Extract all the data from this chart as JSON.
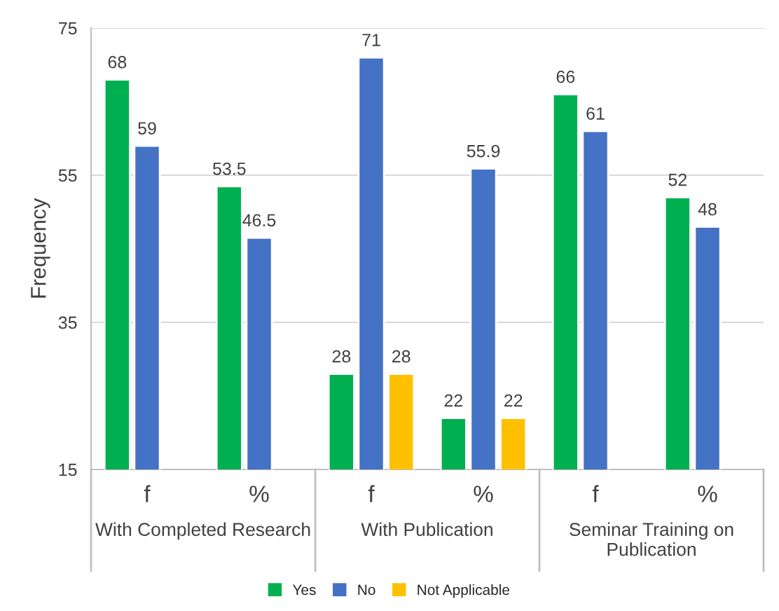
{
  "chart_data": {
    "type": "bar",
    "ylabel": "Frequency",
    "categories": [
      "f",
      "%",
      "f",
      "%",
      "f",
      "%"
    ],
    "series": [
      {
        "name": "Yes",
        "color": "#00b050",
        "values": [
          68,
          53.5,
          28,
          22,
          66,
          52
        ]
      },
      {
        "name": "No",
        "color": "#4472c4",
        "values": [
          59,
          46.5,
          71,
          55.9,
          61,
          48
        ]
      },
      {
        "name": "Not Applicable",
        "color": "#ffc000",
        "values": [
          null,
          null,
          28,
          22,
          null,
          null
        ]
      }
    ],
    "ylim": [
      15,
      75
    ],
    "yticks": [
      15,
      35,
      55,
      75
    ],
    "grid": "y",
    "legend": "bottom",
    "data_labels": true,
    "annotations": [
      "With Completed Research",
      "With Publication",
      "Seminar Training on Publication"
    ]
  }
}
